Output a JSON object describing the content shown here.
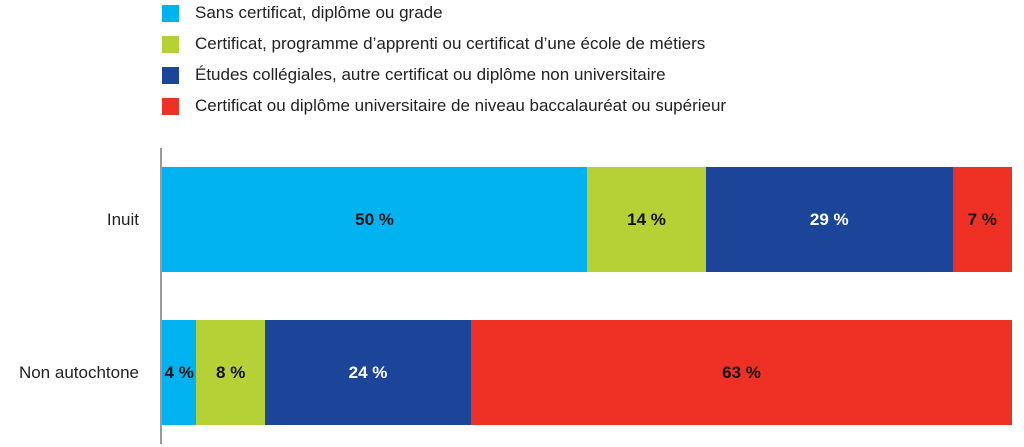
{
  "chart_data": {
    "type": "bar",
    "orientation": "horizontal",
    "stacked": true,
    "categories": [
      "Inuit",
      "Non autochtone"
    ],
    "series": [
      {
        "name": "Sans certificat, diplôme ou grade",
        "color": "#00b2ef",
        "values": [
          50,
          4
        ],
        "labels": [
          "50 %",
          "4 %"
        ],
        "label_color": "#111111"
      },
      {
        "name": "Certificat, programme d’apprenti ou certificat d’une école de métiers",
        "color": "#b5d136",
        "values": [
          14,
          8
        ],
        "labels": [
          "14 %",
          "8 %"
        ],
        "label_color": "#111111"
      },
      {
        "name": "Études collégiales, autre certificat ou diplôme non universitaire",
        "color": "#1c4599",
        "values": [
          29,
          24
        ],
        "labels": [
          "29 %",
          "24 %"
        ],
        "label_color": "#ffffff"
      },
      {
        "name": "Certificat ou diplôme universitaire de niveau baccalauréat ou supérieur",
        "color": "#ee3124",
        "values": [
          7,
          63
        ],
        "labels": [
          "7 %",
          "63 %"
        ],
        "label_color": "#111111"
      }
    ],
    "xlim": [
      0,
      100
    ],
    "legend": "top",
    "grid": false
  }
}
